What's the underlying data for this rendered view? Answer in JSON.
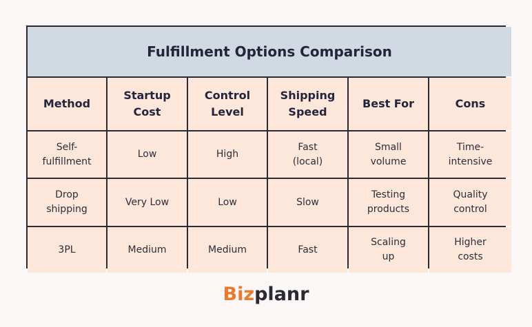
{
  "table": {
    "title": "Fulfillment Options Comparison",
    "headers": [
      "Method",
      "Startup\nCost",
      "Control\nLevel",
      "Shipping\nSpeed",
      "Best For",
      "Cons"
    ],
    "rows": [
      [
        "Self-\nfulfillment",
        "Low",
        "High",
        "Fast\n(local)",
        "Small\nvolume",
        "Time-\nintensive"
      ],
      [
        "Drop\nshipping",
        "Very Low",
        "Low",
        "Slow",
        "Testing\nproducts",
        "Quality\ncontrol"
      ],
      [
        "3PL",
        "Medium",
        "Medium",
        "Fast",
        "Scaling\nup",
        "Higher\ncosts"
      ]
    ]
  },
  "logo": {
    "part1": "Biz",
    "part2": "planr"
  },
  "colors": {
    "header_bg": "#d1d9e3",
    "cell_bg": "#fde6da",
    "border": "#2a2a33",
    "logo_accent": "#e97b2f"
  }
}
